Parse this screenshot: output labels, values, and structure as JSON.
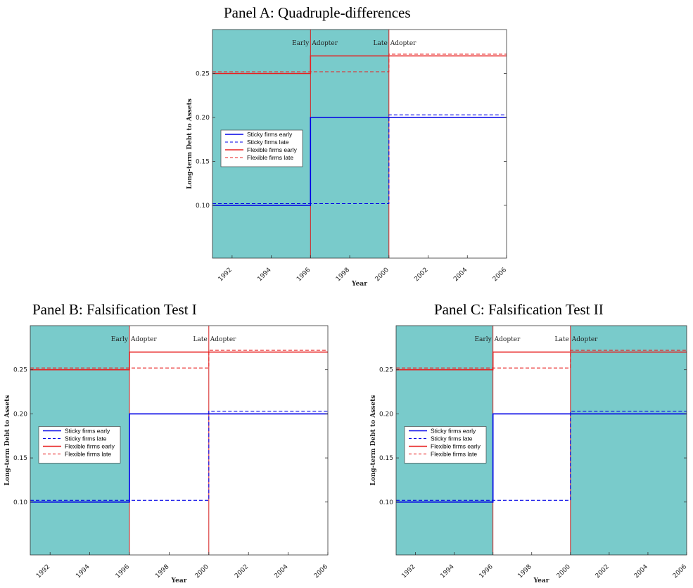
{
  "colors": {
    "shade": "#79cbcb",
    "sticky": "#0000e6",
    "flexible": "#e82020",
    "marker": "#d62020"
  },
  "chart_data": [
    {
      "type": "line",
      "title": "Panel A: Quadruple-differences",
      "xlabel": "Year",
      "ylabel": "Long-term Debt to Assets",
      "xlim": [
        1991,
        2006
      ],
      "ylim": [
        0.04,
        0.3
      ],
      "xticks": [
        "1992",
        "1994",
        "1996",
        "1998",
        "2000",
        "2002",
        "2004",
        "2006"
      ],
      "yticks": [
        "0.10",
        "0.15",
        "0.20",
        "0.25"
      ],
      "shaded_ranges": [
        [
          1991,
          2000
        ]
      ],
      "vertical_markers": [
        {
          "x": 1996,
          "label_left": "Early",
          "label_right": "Adopter"
        },
        {
          "x": 2000,
          "label_left": "Late",
          "label_right": "Adopter"
        }
      ],
      "legend_position": "center-left",
      "series": [
        {
          "name": "Sticky firms early",
          "style": "solid",
          "color": "sticky",
          "steps": [
            [
              1991,
              1996,
              0.1
            ],
            [
              1996,
              2006,
              0.2
            ]
          ]
        },
        {
          "name": "Sticky firms late",
          "style": "dashed",
          "color": "sticky",
          "steps": [
            [
              1991,
              2000,
              0.102
            ],
            [
              2000,
              2006,
              0.203
            ]
          ]
        },
        {
          "name": "Flexible firms early",
          "style": "solid",
          "color": "flexible",
          "steps": [
            [
              1991,
              1996,
              0.25
            ],
            [
              1996,
              2006,
              0.27
            ]
          ]
        },
        {
          "name": "Flexible firms late",
          "style": "dashed",
          "color": "flexible",
          "steps": [
            [
              1991,
              2000,
              0.252
            ],
            [
              2000,
              2006,
              0.272
            ]
          ]
        }
      ]
    },
    {
      "type": "line",
      "title": "Panel B: Falsification Test I",
      "xlabel": "Year",
      "ylabel": "Long-term Debt to Assets",
      "xlim": [
        1991,
        2006
      ],
      "ylim": [
        0.04,
        0.3
      ],
      "xticks": [
        "1992",
        "1994",
        "1996",
        "1998",
        "2000",
        "2002",
        "2004",
        "2006"
      ],
      "yticks": [
        "0.10",
        "0.15",
        "0.20",
        "0.25"
      ],
      "shaded_ranges": [
        [
          1991,
          1996
        ]
      ],
      "vertical_markers": [
        {
          "x": 1996,
          "label_left": "Early",
          "label_right": "Adopter"
        },
        {
          "x": 2000,
          "label_left": "Late",
          "label_right": "Adopter"
        }
      ],
      "legend_position": "center-left",
      "series": [
        {
          "name": "Sticky firms early",
          "style": "solid",
          "color": "sticky",
          "steps": [
            [
              1991,
              1996,
              0.1
            ],
            [
              1996,
              2006,
              0.2
            ]
          ]
        },
        {
          "name": "Sticky firms late",
          "style": "dashed",
          "color": "sticky",
          "steps": [
            [
              1991,
              2000,
              0.102
            ],
            [
              2000,
              2006,
              0.203
            ]
          ]
        },
        {
          "name": "Flexible firms early",
          "style": "solid",
          "color": "flexible",
          "steps": [
            [
              1991,
              1996,
              0.25
            ],
            [
              1996,
              2006,
              0.27
            ]
          ]
        },
        {
          "name": "Flexible firms late",
          "style": "dashed",
          "color": "flexible",
          "steps": [
            [
              1991,
              2000,
              0.252
            ],
            [
              2000,
              2006,
              0.272
            ]
          ]
        }
      ]
    },
    {
      "type": "line",
      "title": "Panel C: Falsification Test II",
      "xlabel": "Year",
      "ylabel": "Long-term Debt to Assets",
      "xlim": [
        1991,
        2006
      ],
      "ylim": [
        0.04,
        0.3
      ],
      "xticks": [
        "1992",
        "1994",
        "1996",
        "1998",
        "2000",
        "2002",
        "2004",
        "2006"
      ],
      "yticks": [
        "0.10",
        "0.15",
        "0.20",
        "0.25"
      ],
      "shaded_ranges": [
        [
          1991,
          1996
        ],
        [
          2000,
          2006
        ]
      ],
      "vertical_markers": [
        {
          "x": 1996,
          "label_left": "Early",
          "label_right": "Adopter"
        },
        {
          "x": 2000,
          "label_left": "Late",
          "label_right": "Adopter"
        }
      ],
      "legend_position": "center-left",
      "series": [
        {
          "name": "Sticky firms early",
          "style": "solid",
          "color": "sticky",
          "steps": [
            [
              1991,
              1996,
              0.1
            ],
            [
              1996,
              2006,
              0.2
            ]
          ]
        },
        {
          "name": "Sticky firms late",
          "style": "dashed",
          "color": "sticky",
          "steps": [
            [
              1991,
              2000,
              0.102
            ],
            [
              2000,
              2006,
              0.203
            ]
          ]
        },
        {
          "name": "Flexible firms early",
          "style": "solid",
          "color": "flexible",
          "steps": [
            [
              1991,
              1996,
              0.25
            ],
            [
              1996,
              2006,
              0.27
            ]
          ]
        },
        {
          "name": "Flexible firms late",
          "style": "dashed",
          "color": "flexible",
          "steps": [
            [
              1991,
              2000,
              0.252
            ],
            [
              2000,
              2006,
              0.272
            ]
          ]
        }
      ]
    }
  ]
}
